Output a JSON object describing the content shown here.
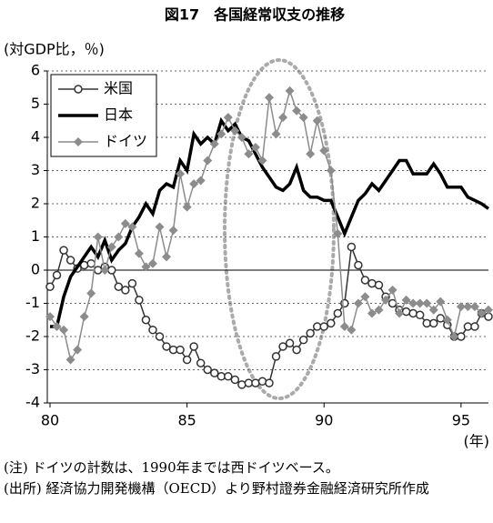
{
  "chart_data": {
    "type": "line",
    "title": "図17　各国経常収支の推移",
    "y_label": "(対GDP比，％)",
    "x_label": "(年)",
    "x": [
      80,
      80.25,
      80.5,
      80.75,
      81,
      81.25,
      81.5,
      81.75,
      82,
      82.25,
      82.5,
      82.75,
      83,
      83.25,
      83.5,
      83.75,
      84,
      84.25,
      84.5,
      84.75,
      85,
      85.25,
      85.5,
      85.75,
      86,
      86.25,
      86.5,
      86.75,
      87,
      87.25,
      87.5,
      87.75,
      88,
      88.25,
      88.5,
      88.75,
      89,
      89.25,
      89.5,
      89.75,
      90,
      90.25,
      90.5,
      90.75,
      91,
      91.25,
      91.5,
      91.75,
      92,
      92.25,
      92.5,
      92.75,
      93,
      93.25,
      93.5,
      93.75,
      94,
      94.25,
      94.5,
      94.75,
      95,
      95.25,
      95.5,
      95.75,
      96
    ],
    "series": [
      {
        "name": "米国",
        "color": "#333333",
        "marker": "circle",
        "values": [
          -0.5,
          -0.15,
          0.6,
          0.3,
          0.05,
          0.15,
          0.2,
          0,
          0.1,
          0,
          -0.5,
          -0.6,
          -0.4,
          -0.9,
          -1.5,
          -1.8,
          -2.0,
          -2.3,
          -2.4,
          -2.4,
          -2.7,
          -2.3,
          -2.8,
          -3.0,
          -3.1,
          -3.2,
          -3.2,
          -3.3,
          -3.45,
          -3.4,
          -3.4,
          -3.35,
          -3.4,
          -2.6,
          -2.3,
          -2.2,
          -2.4,
          -2.1,
          -1.9,
          -1.7,
          -1.7,
          -1.6,
          -1.3,
          -1.0,
          0.7,
          0.15,
          -0.3,
          -0.4,
          -0.45,
          -0.8,
          -1.0,
          -1.2,
          -1.25,
          -1.3,
          -1.35,
          -1.6,
          -1.6,
          -1.45,
          -1.65,
          -2.0,
          -2.0,
          -1.7,
          -1.7,
          -1.3,
          -1.4
        ]
      },
      {
        "name": "日本",
        "color": "#000000",
        "marker": "none",
        "values": [
          -1.7,
          -1.7,
          -0.8,
          -0.2,
          0.1,
          0.4,
          0.7,
          0.4,
          0.9,
          0.3,
          0.6,
          0.8,
          1.3,
          1.6,
          2.0,
          1.7,
          2.4,
          2.6,
          2.5,
          3.3,
          3.0,
          4.1,
          3.8,
          4.0,
          3.8,
          4.5,
          4.2,
          4.4,
          4.0,
          3.9,
          3.5,
          3.1,
          2.8,
          2.5,
          2.4,
          2.6,
          3.1,
          2.4,
          2.2,
          2.2,
          2.1,
          2.1,
          1.6,
          1.1,
          1.6,
          2.1,
          2.3,
          2.6,
          2.4,
          2.7,
          3.0,
          3.3,
          3.3,
          2.9,
          2.9,
          2.9,
          3.2,
          2.9,
          2.5,
          2.5,
          2.5,
          2.2,
          2.1,
          2.0,
          1.85
        ]
      },
      {
        "name": "ドイツ",
        "color": "#8c8c8c",
        "marker": "diamond",
        "values": [
          -1.4,
          -1.7,
          -1.8,
          -2.7,
          -2.4,
          -1.4,
          -0.7,
          1.0,
          0.0,
          0.7,
          1.0,
          1.4,
          1.3,
          0.5,
          0.1,
          0.2,
          1.3,
          0.4,
          1.2,
          2.9,
          1.9,
          2.6,
          2.7,
          3.3,
          3.8,
          4.1,
          4.6,
          4.2,
          4.0,
          3.5,
          3.7,
          3.3,
          5.2,
          4.1,
          4.6,
          5.4,
          4.8,
          4.6,
          3.5,
          4.5,
          3.6,
          3.0,
          1.1,
          -1.7,
          -1.8,
          -1.0,
          -0.8,
          -1.3,
          -1.2,
          -0.9,
          -0.6,
          -1.3,
          -0.9,
          -1.0,
          -1.0,
          -1.0,
          -1.2,
          -0.95,
          -1.5,
          -2.0,
          -1.1,
          -1.1,
          -1.1,
          -1.3,
          -1.2
        ]
      }
    ],
    "xlim": [
      80,
      96
    ],
    "xticks": [
      80,
      85,
      90,
      95
    ],
    "ylim": [
      -4,
      6
    ],
    "yticks": [
      -4,
      -3,
      -2,
      -1,
      0,
      1,
      2,
      3,
      4,
      5,
      6
    ],
    "grid": true,
    "legend": "top-left",
    "notes": [
      "(注) ドイツの計数は、1990年までは西ドイツベース。",
      "(出所) 経済協力開発機構（OECD）より野村證券金融経済研究所作成"
    ]
  }
}
